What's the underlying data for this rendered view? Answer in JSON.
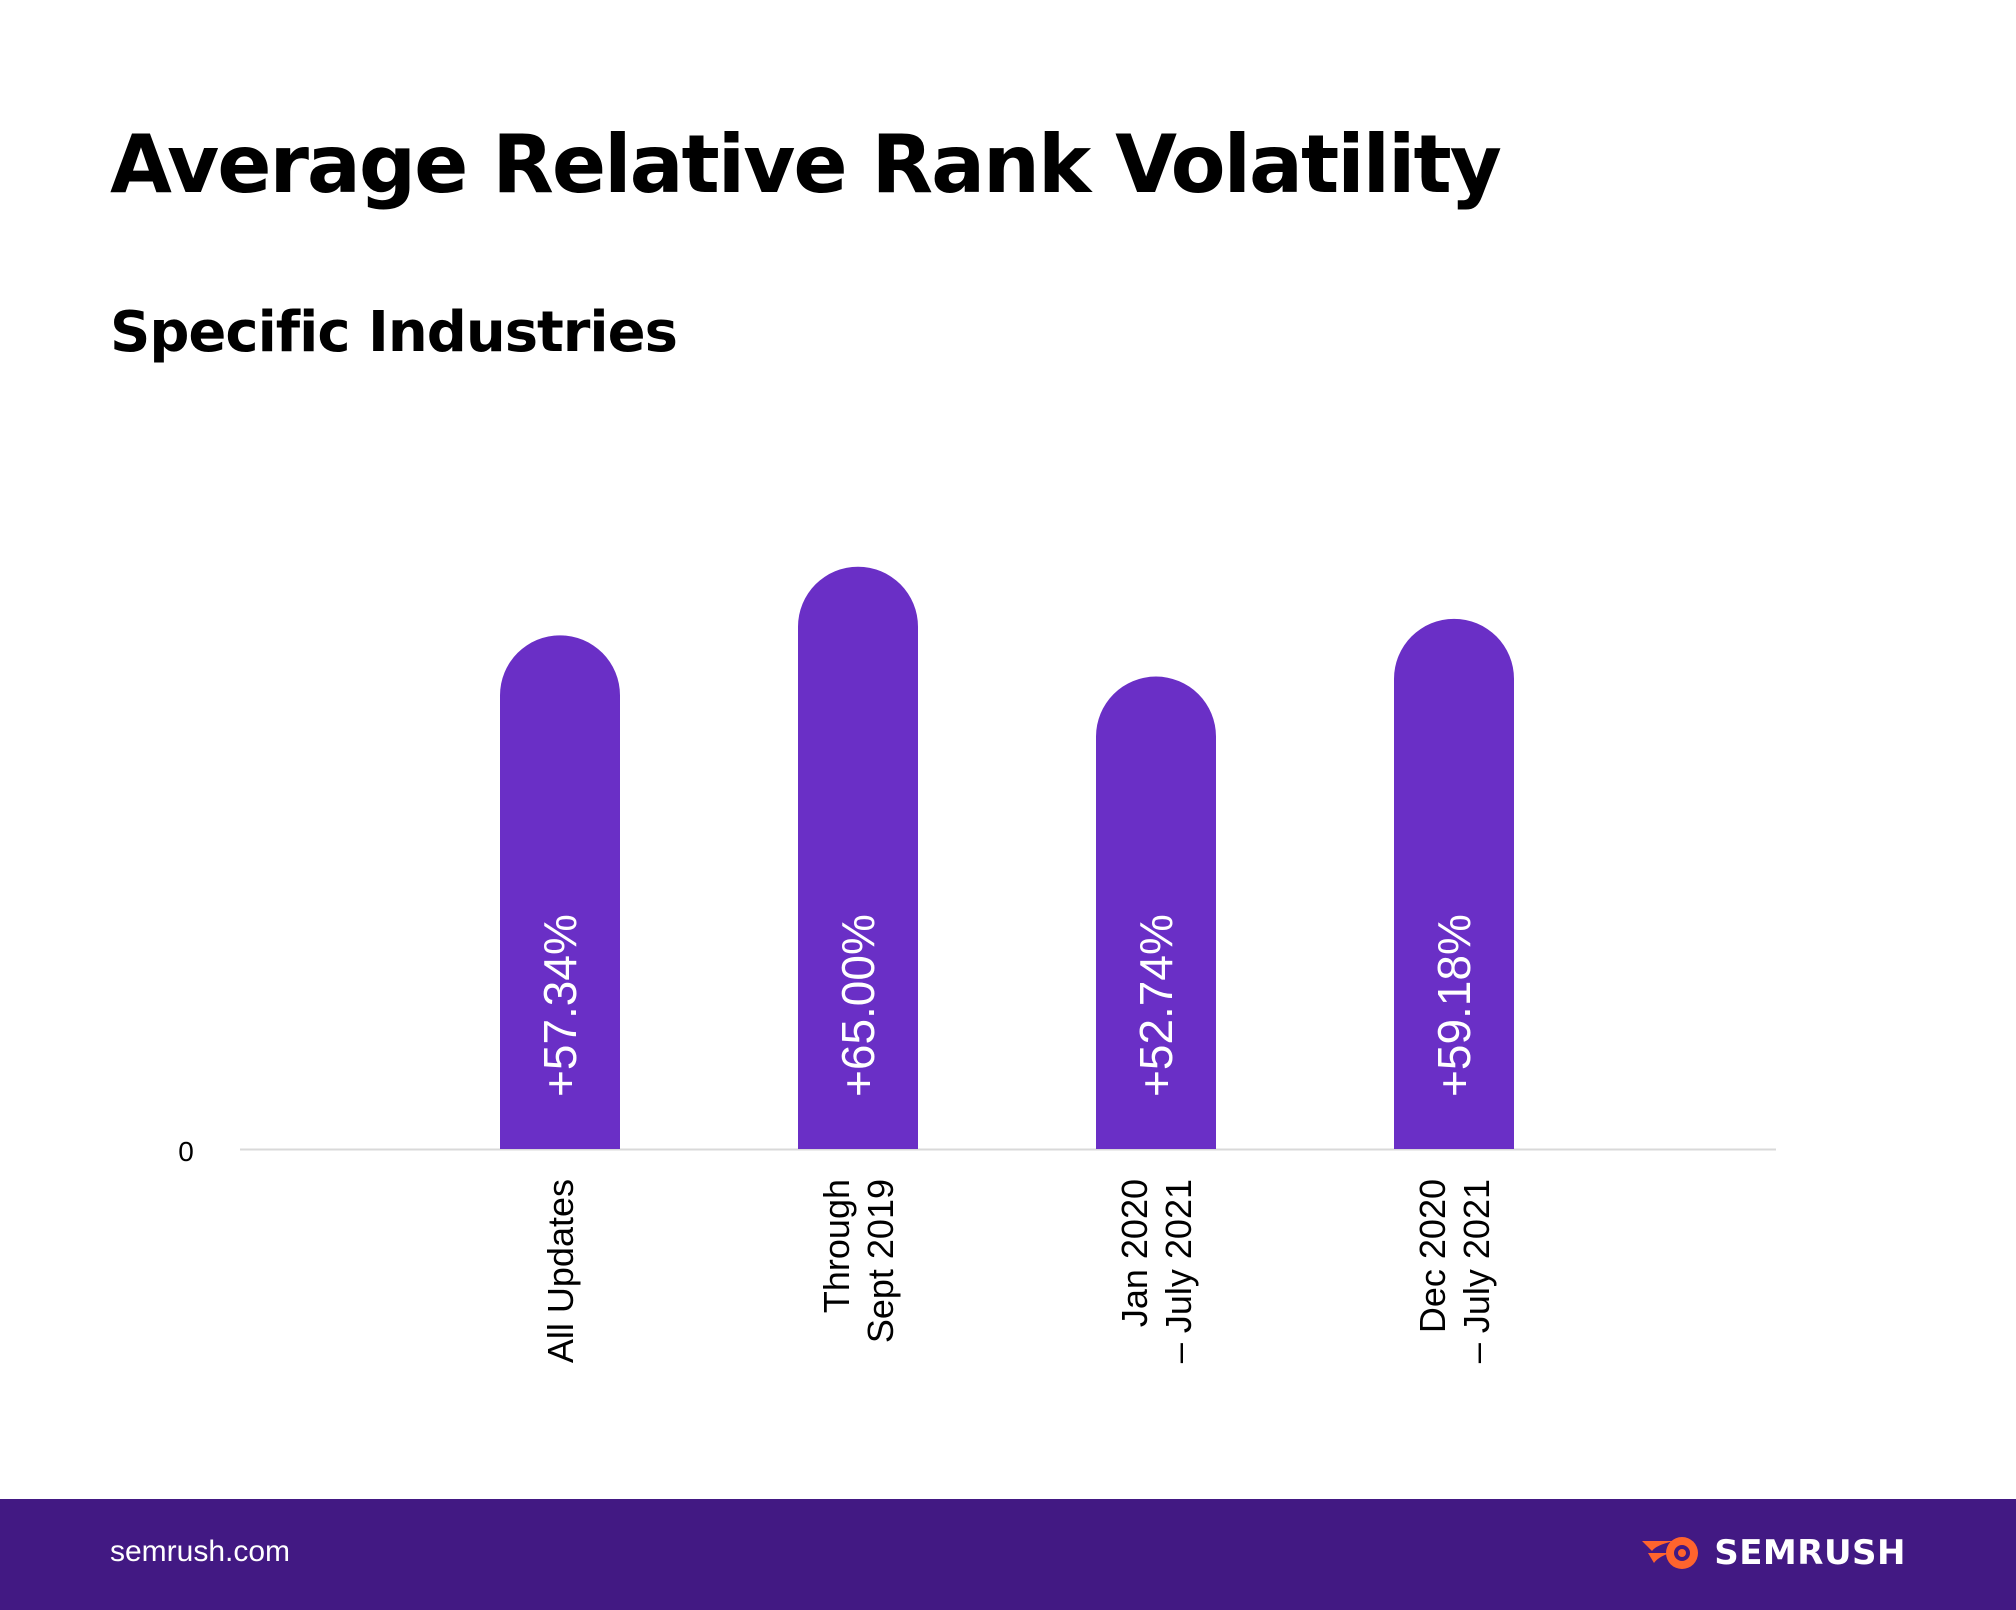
{
  "title": "Average Relative Rank Volatility",
  "subtitle": "Specific Industries",
  "colors": {
    "bar": "#6a2fc6",
    "footer_bg": "#421983",
    "brand_accent": "#ff642d",
    "axis_line": "#d9d9d9"
  },
  "chart_data": {
    "type": "bar",
    "categories": [
      [
        "All Updates"
      ],
      [
        "Through",
        "Sept 2019"
      ],
      [
        "Jan 2020",
        "– July 2021"
      ],
      [
        "Dec 2020",
        "– July 2021"
      ]
    ],
    "values": [
      57.34,
      65.0,
      52.74,
      59.18
    ],
    "data_labels": [
      "+57.34%",
      "+65.00%",
      "+52.74%",
      "+59.18%"
    ],
    "y_tick_labels": [
      "0"
    ],
    "ylim": [
      0,
      81.6
    ],
    "title": "Average Relative Rank Volatility",
    "subtitle": "Specific Industries",
    "xlabel": "",
    "ylabel": "",
    "grid": false,
    "legend": "none"
  },
  "footer": {
    "url": "semrush.com",
    "brand_name": "SEMRUSH",
    "logo_icon": "semrush-flame-icon"
  }
}
